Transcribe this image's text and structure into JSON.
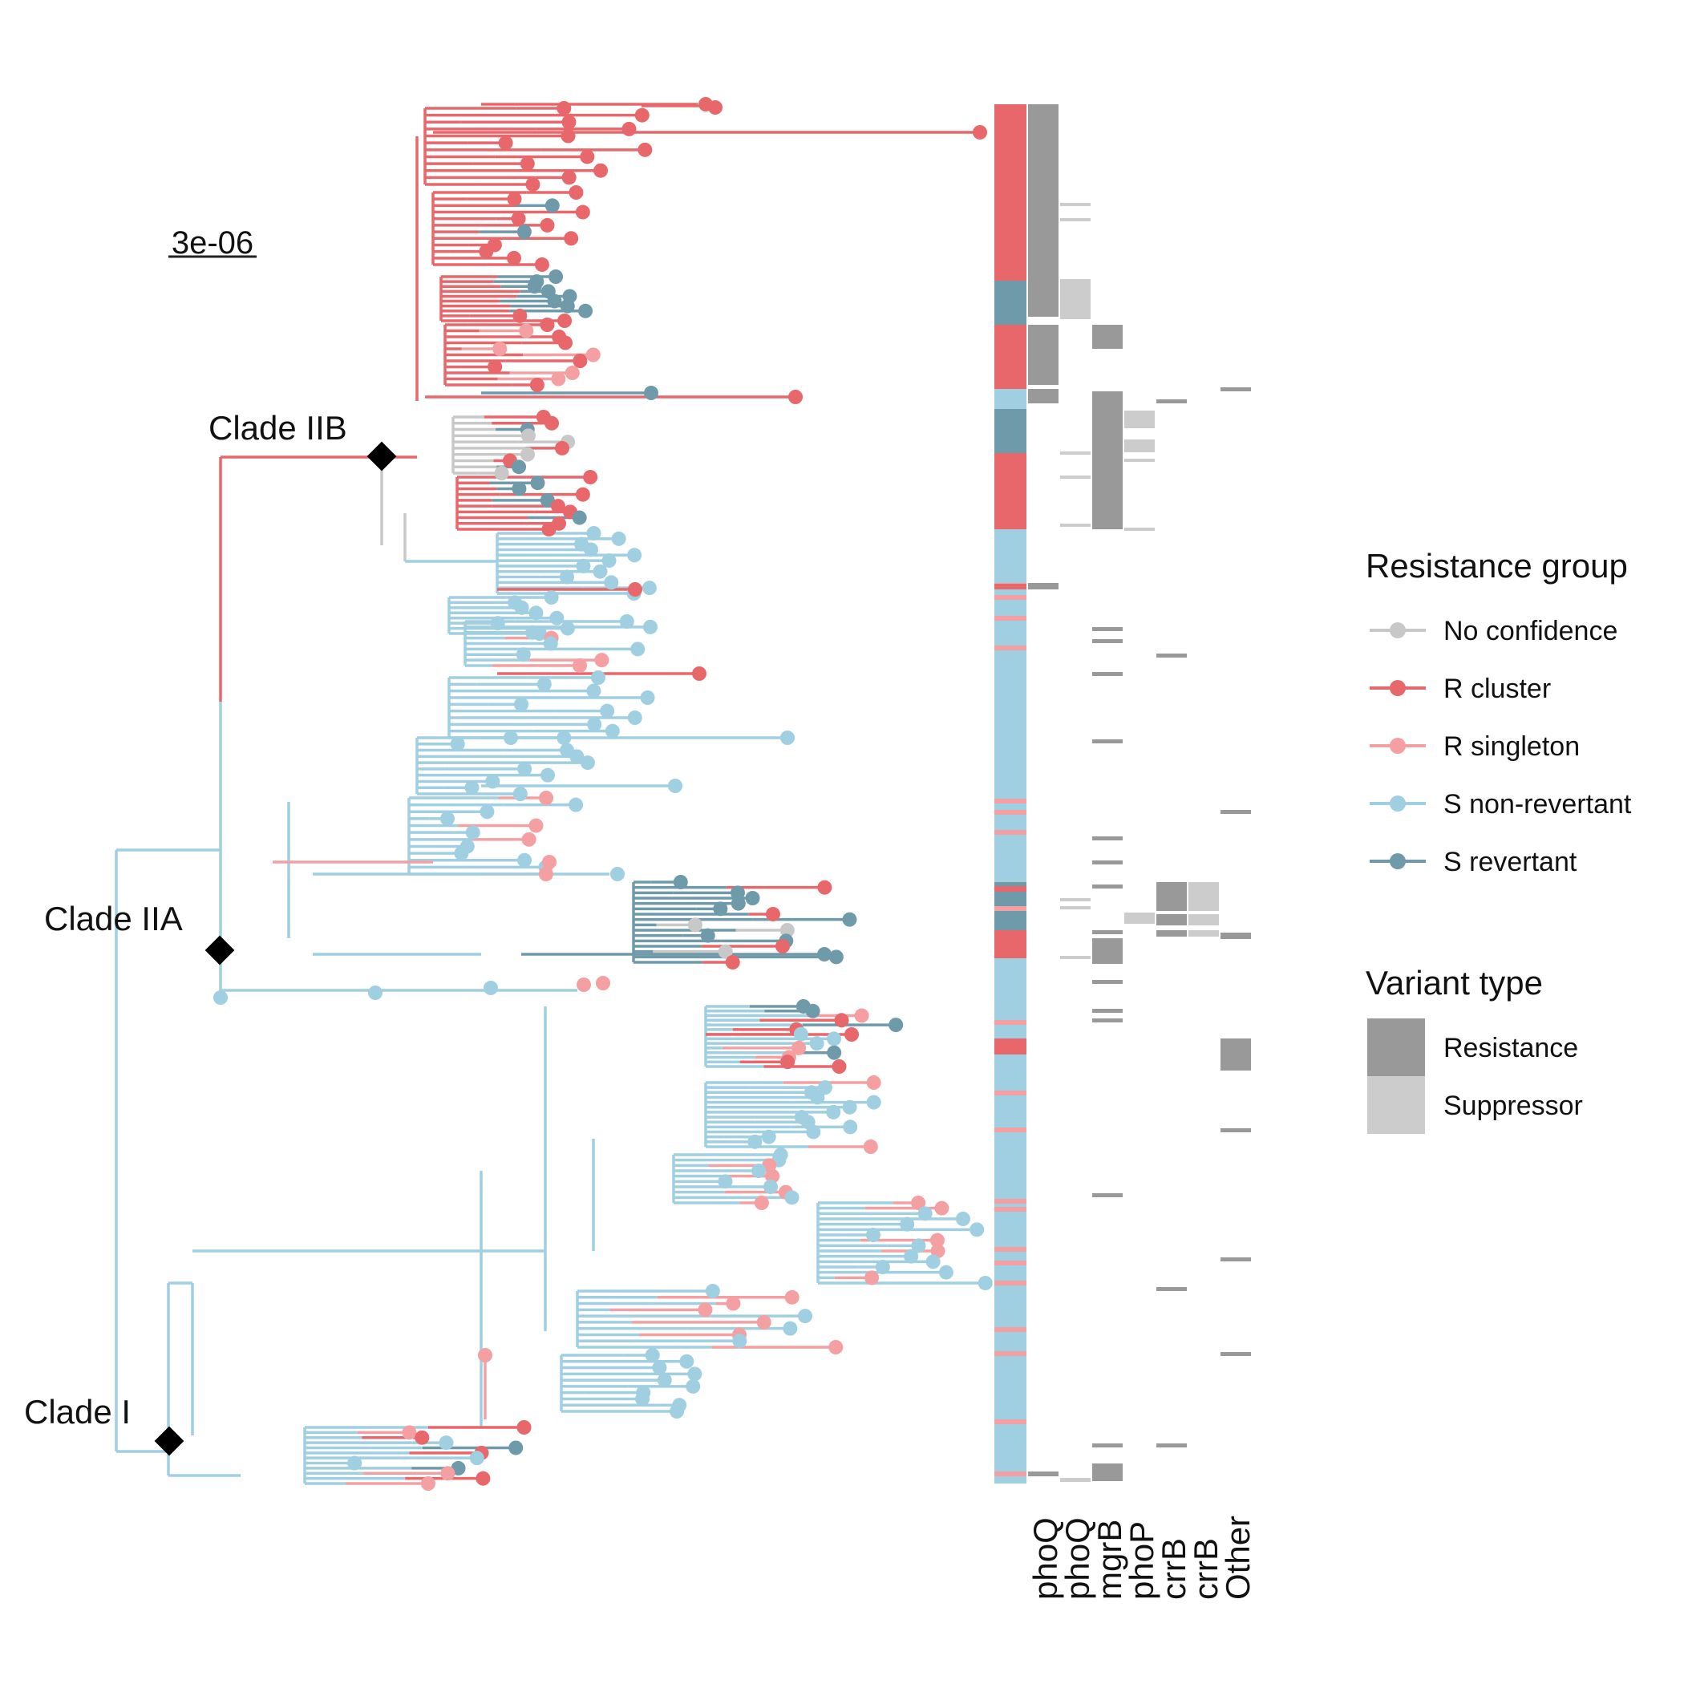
{
  "scale_bar": {
    "label": "3e-06"
  },
  "clades": [
    {
      "id": "IIB",
      "label": "Clade IIB"
    },
    {
      "id": "IIA",
      "label": "Clade IIA"
    },
    {
      "id": "I",
      "label": "Clade I"
    }
  ],
  "heatmap_columns": [
    "phoQ",
    "phoQ",
    "mgrB",
    "phoP",
    "crrB",
    "crrB",
    "Other"
  ],
  "legend": {
    "resistance_title": "Resistance group",
    "resistance_items": [
      {
        "label": "No confidence",
        "color": "#c8c8c8"
      },
      {
        "label": "R cluster",
        "color": "#e8676b"
      },
      {
        "label": "R singleton",
        "color": "#f4a0a2"
      },
      {
        "label": "S non-revertant",
        "color": "#9fcfe0"
      },
      {
        "label": "S revertant",
        "color": "#6f9aaa"
      }
    ],
    "variant_title": "Variant type",
    "variant_items": [
      {
        "label": "Resistance",
        "color": "#999999"
      },
      {
        "label": "Suppressor",
        "color": "#cccccc"
      }
    ]
  }
}
